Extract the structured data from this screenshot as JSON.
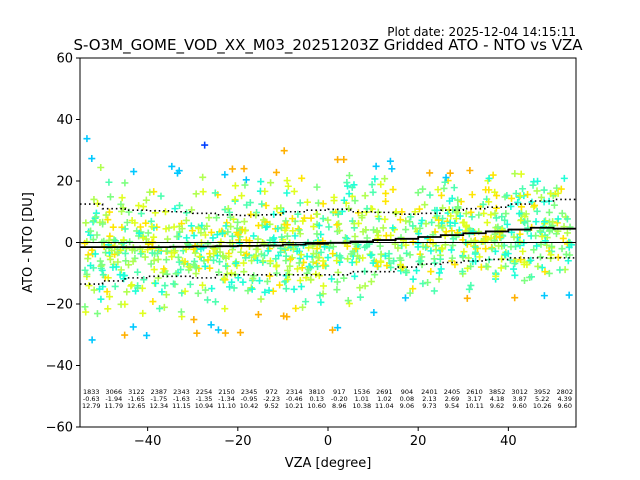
{
  "chart_data": {
    "type": "scatter",
    "title": "S-O3M_GOME_VOD_XX_M03_20251203Z Gridded ATO - NTO vs VZA",
    "plot_date": "Plot date: 2025-12-04 14:15:11",
    "xlabel": "VZA [degree]",
    "ylabel": "ATO - NTO [DU]",
    "xlim": [
      -55,
      55
    ],
    "ylim": [
      -60,
      60
    ],
    "x_ticks": [
      -40,
      -20,
      0,
      20,
      40
    ],
    "x_tick_labels": [
      "−40",
      "−20",
      "0",
      "20",
      "40"
    ],
    "y_ticks": [
      -60,
      -40,
      -20,
      0,
      20,
      40,
      60
    ],
    "y_tick_labels": [
      "−60",
      "−40",
      "−20",
      "0",
      "20",
      "40",
      "60"
    ],
    "grid": false,
    "marker": "+",
    "bins": {
      "edges": [
        -55,
        -50,
        -45,
        -40,
        -35,
        -30,
        -25,
        -20,
        -15,
        -10,
        -5,
        0,
        5,
        10,
        15,
        20,
        25,
        30,
        35,
        40,
        45,
        50,
        55
      ],
      "mean": [
        -1.5,
        -1.5,
        -1.5,
        -1.5,
        -1.4,
        -1.3,
        -1.2,
        -1.1,
        -1.0,
        -0.7,
        -0.4,
        -0.1,
        0.3,
        0.8,
        1.2,
        1.8,
        2.4,
        3.0,
        3.6,
        4.2,
        4.8,
        4.5
      ],
      "upper": [
        12.5,
        11.0,
        10.5,
        10.3,
        10.0,
        9.5,
        9.0,
        8.8,
        9.0,
        10.0,
        10.5,
        10.8,
        10.0,
        9.8,
        9.2,
        9.5,
        10.5,
        11.0,
        11.5,
        12.5,
        13.5,
        14.0
      ],
      "lower": [
        -13.5,
        -12.5,
        -11.5,
        -11.0,
        -11.0,
        -11.5,
        -10.5,
        -10.5,
        -10.5,
        -10.5,
        -10.5,
        -10.5,
        -9.5,
        -9.5,
        -8.0,
        -7.0,
        -6.5,
        -6.0,
        -5.5,
        -5.0,
        -5.0,
        -5.0
      ]
    },
    "stats": {
      "counts": [
        "1833",
        "3066",
        "3122",
        "2387",
        "2343",
        "2254",
        "2150",
        "2345",
        "972",
        "2314",
        "3810",
        "917",
        "1536",
        "2691",
        "904",
        "2401",
        "2405",
        "2610",
        "3852",
        "3012",
        "3952",
        "2802"
      ],
      "means": [
        "-0.63",
        "-1.94",
        "-1.65",
        "-1.75",
        "-1.63",
        "-1.35",
        "-1.34",
        "-0.95",
        "-2.23",
        "-0.46",
        "0.13",
        "-0.20",
        "1.01",
        "1.02",
        "0.08",
        "2.13",
        "2.69",
        "3.17",
        "4.18",
        "3.87",
        "5.22",
        "4.39"
      ],
      "stds": [
        "12.79",
        "11.79",
        "12.65",
        "12.34",
        "11.15",
        "10.94",
        "11.10",
        "10.42",
        "9.52",
        "10.21",
        "10.60",
        "8.96",
        "10.38",
        "11.04",
        "9.06",
        "9.73",
        "9.54",
        "10.11",
        "9.62",
        "9.60",
        "10.26",
        "9.60"
      ]
    },
    "colors": {
      "points": [
        "#00c8ff",
        "#1fffd8",
        "#4dffb0",
        "#7dff80",
        "#b0ff50",
        "#e0ff20",
        "#ffe600",
        "#ffb000",
        "#0040ff"
      ],
      "mean_line": "#000000",
      "std_line": "#000000",
      "zero_line": "#000000"
    }
  }
}
